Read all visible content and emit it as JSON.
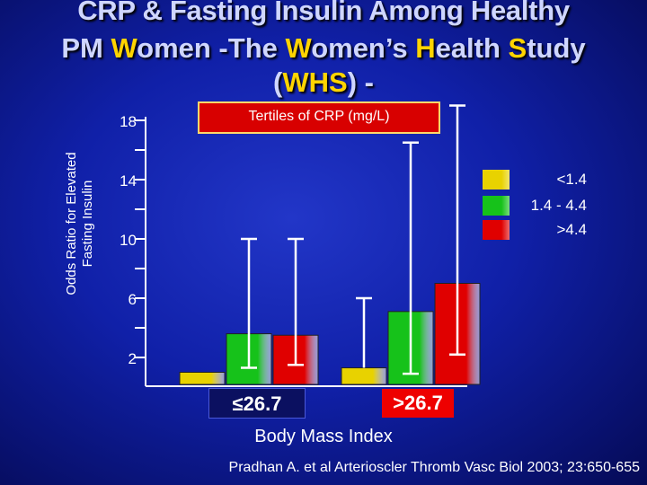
{
  "title": {
    "line1": "CRP & Fasting Insulin Among Healthy",
    "line2_pre": "PM ",
    "line2_a": "W",
    "line2_b": "omen -The ",
    "line2_c": "W",
    "line2_d": "omen’s ",
    "line2_e": "H",
    "line2_f": "ealth ",
    "line2_g": "S",
    "line2_h": "tudy",
    "line3_open": "(",
    "line3_abbr": "WHS",
    "line3_close": ") -"
  },
  "chart_data": {
    "type": "bar",
    "title": "CRP & Fasting Insulin Among Healthy PM Women -The Women’s Health Study (WHS) -",
    "ylabel_line1": "Odds Ratio for Elevated",
    "ylabel_line2": "Fasting Insulin",
    "xlabel": "Body Mass Index",
    "ylim": [
      0,
      18
    ],
    "yticks": [
      2,
      6,
      10,
      14,
      18
    ],
    "yticklabels": [
      "2",
      "6",
      "10",
      "14",
      "18"
    ],
    "legend_title": "Tertiles of CRP (mg/L)",
    "categories": [
      "≤26.7",
      ">26.7"
    ],
    "series": [
      {
        "name": "<1.4",
        "color": "#e8d200",
        "values": [
          1.0,
          1.3
        ],
        "error_low": [
          null,
          null
        ],
        "error_high": [
          null,
          6.0
        ]
      },
      {
        "name": "1.4 - 4.4",
        "color": "#16c21a",
        "values": [
          3.6,
          5.1
        ],
        "error_low": [
          1.3,
          0.9
        ],
        "error_high": [
          10.0,
          16.5
        ]
      },
      {
        "name": ">4.4",
        "color": "#e00000",
        "values": [
          3.5,
          7.0
        ],
        "error_low": [
          1.5,
          2.2
        ],
        "error_high": [
          10.0,
          19.0
        ]
      }
    ]
  },
  "citation": "Pradhan A. et al Arterioscler Thromb Vasc Biol 2003; 23:650-655"
}
